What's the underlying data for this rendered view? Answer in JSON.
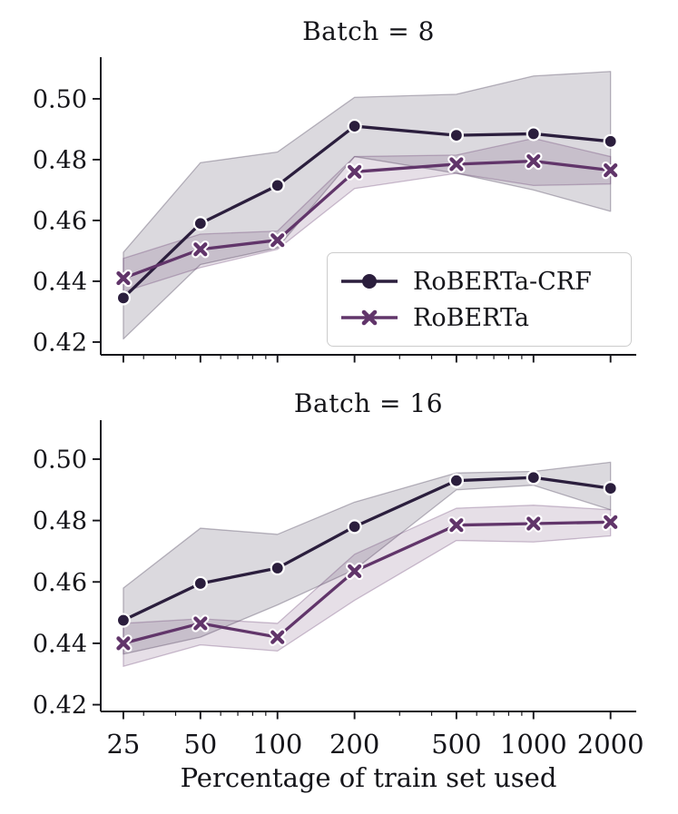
{
  "figure": {
    "background": "#ffffff",
    "text_color": "#15151a"
  },
  "chart_data": {
    "type": "line",
    "xscale": "log",
    "xlabel": "Percentage of train set used",
    "x": [
      25,
      50,
      100,
      200,
      500,
      1000,
      2000
    ],
    "x_tick_labels": [
      "25",
      "50",
      "100",
      "200",
      "500",
      "1000",
      "2000"
    ],
    "x_minor_ticks": [
      30,
      40,
      60,
      70,
      80,
      90,
      300,
      400,
      600,
      700,
      800,
      900
    ],
    "xlim": [
      20.4,
      2520
    ],
    "y_ticks": [
      0.42,
      0.44,
      0.46,
      0.48,
      0.5
    ],
    "y_tick_labels": [
      "0.42",
      "0.44",
      "0.46",
      "0.48",
      "0.50"
    ],
    "grid": false,
    "legend_position": "lower-right-of-top-panel",
    "legend": {
      "entries": [
        {
          "label": "RoBERTa-CRF",
          "marker": "circle",
          "color": "#2b1e3d"
        },
        {
          "label": "RoBERTa",
          "marker": "x",
          "color": "#61356a"
        }
      ]
    },
    "panels": [
      {
        "title": "Batch = 8",
        "ylim": [
          0.4158,
          0.5137
        ],
        "series": [
          {
            "name": "RoBERTa-CRF",
            "color": "#2b1e3d",
            "marker": "circle",
            "values": [
              0.4345,
              0.459,
              0.4715,
              0.491,
              0.488,
              0.4885,
              0.486
            ],
            "band_low": [
              0.421,
              0.4455,
              0.451,
              0.481,
              0.4755,
              0.47,
              0.463
            ],
            "band_high": [
              0.4495,
              0.479,
              0.4825,
              0.5005,
              0.5015,
              0.5075,
              0.509
            ]
          },
          {
            "name": "RoBERTa",
            "color": "#61356a",
            "marker": "x",
            "values": [
              0.441,
              0.4505,
              0.4535,
              0.476,
              0.4785,
              0.4795,
              0.4765
            ],
            "band_low": [
              0.4365,
              0.4445,
              0.4505,
              0.4705,
              0.4755,
              0.4715,
              0.472
            ],
            "band_high": [
              0.4475,
              0.4555,
              0.4565,
              0.481,
              0.4815,
              0.487,
              0.481
            ]
          }
        ]
      },
      {
        "title": "Batch = 16",
        "ylim": [
          0.4178,
          0.5127
        ],
        "series": [
          {
            "name": "RoBERTa-CRF",
            "color": "#2b1e3d",
            "marker": "circle",
            "values": [
              0.4475,
              0.4595,
              0.4645,
              0.478,
              0.493,
              0.494,
              0.4905
            ],
            "band_low": [
              0.4365,
              0.442,
              0.4525,
              0.464,
              0.49,
              0.4915,
              0.4835
            ],
            "band_high": [
              0.458,
              0.4775,
              0.4755,
              0.486,
              0.4955,
              0.496,
              0.499
            ]
          },
          {
            "name": "RoBERTa",
            "color": "#61356a",
            "marker": "x",
            "values": [
              0.44,
              0.4465,
              0.442,
              0.4635,
              0.4785,
              0.479,
              0.4795
            ],
            "band_low": [
              0.4325,
              0.4395,
              0.4375,
              0.454,
              0.4735,
              0.473,
              0.475
            ],
            "band_high": [
              0.4465,
              0.448,
              0.4465,
              0.469,
              0.484,
              0.485,
              0.4835
            ]
          }
        ]
      }
    ]
  }
}
